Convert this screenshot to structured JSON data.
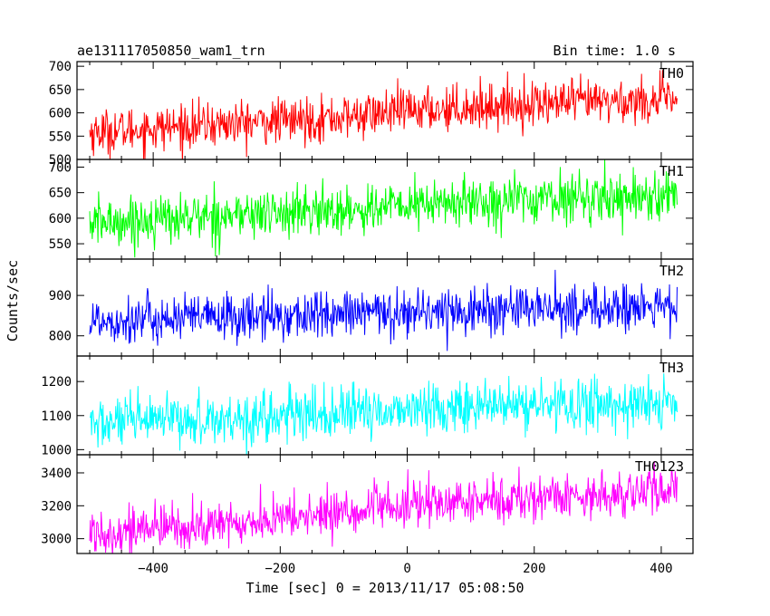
{
  "header": {
    "title": "ae131117050850_wam1_trn",
    "bin_time": "Bin time: 1.0 s"
  },
  "chart_data": {
    "type": "line",
    "xlabel": "Time [sec] 0 = 2013/11/17 05:08:50",
    "ylabel": "Counts/sec",
    "xlim": [
      -520,
      450
    ],
    "xticks": [
      -400,
      -200,
      0,
      200,
      400
    ],
    "x_start": -500,
    "x_end": 425,
    "bin": 1.0,
    "panels": [
      {
        "name": "TH0",
        "color": "#ff0000",
        "ylim": [
          500,
          710
        ],
        "yticks": [
          500,
          550,
          600,
          650,
          700
        ],
        "trend": [
          [
            -500,
            558
          ],
          [
            -300,
            575
          ],
          [
            -100,
            590
          ],
          [
            0,
            605
          ],
          [
            200,
            620
          ],
          [
            425,
            628
          ]
        ],
        "noise": 24
      },
      {
        "name": "TH1",
        "color": "#00ff00",
        "ylim": [
          520,
          715
        ],
        "yticks": [
          550,
          600,
          650,
          700
        ],
        "trend": [
          [
            -500,
            590
          ],
          [
            -300,
            605
          ],
          [
            -100,
            615
          ],
          [
            0,
            625
          ],
          [
            200,
            638
          ],
          [
            425,
            645
          ]
        ],
        "noise": 24
      },
      {
        "name": "TH2",
        "color": "#0000ff",
        "ylim": [
          750,
          990
        ],
        "yticks": [
          800,
          900
        ],
        "trend": [
          [
            -500,
            838
          ],
          [
            -300,
            845
          ],
          [
            -100,
            852
          ],
          [
            0,
            860
          ],
          [
            200,
            866
          ],
          [
            425,
            870
          ]
        ],
        "noise": 30
      },
      {
        "name": "TH3",
        "color": "#00ffff",
        "ylim": [
          985,
          1275
        ],
        "yticks": [
          1000,
          1100,
          1200
        ],
        "trend": [
          [
            -500,
            1075
          ],
          [
            -300,
            1090
          ],
          [
            -100,
            1105
          ],
          [
            0,
            1120
          ],
          [
            200,
            1130
          ],
          [
            425,
            1135
          ]
        ],
        "noise": 38
      },
      {
        "name": "TH0123",
        "color": "#ff00ff",
        "ylim": [
          2910,
          3510
        ],
        "yticks": [
          3000,
          3200,
          3400
        ],
        "trend": [
          [
            -500,
            3040
          ],
          [
            -300,
            3080
          ],
          [
            -100,
            3160
          ],
          [
            0,
            3200
          ],
          [
            200,
            3250
          ],
          [
            425,
            3290
          ]
        ],
        "noise": 70
      }
    ]
  }
}
